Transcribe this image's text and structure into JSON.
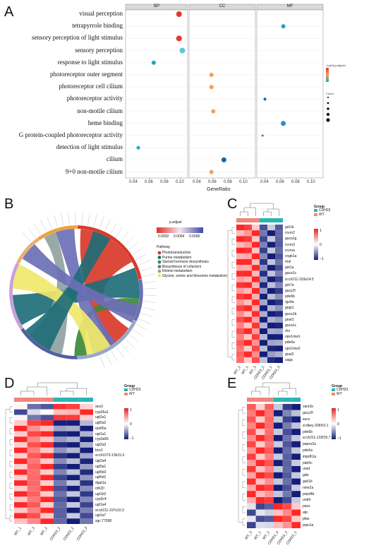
{
  "panels": {
    "A": {
      "letter": "A",
      "facets": [
        "BP",
        "CC",
        "MF"
      ],
      "xlabel": "GeneRatio",
      "terms": [
        "visual perception",
        "tetrapyrrole binding",
        "sensory perception of light stimulus",
        "sensory perception",
        "response to light stimulus",
        "photoreceptor outer segment",
        "photoreceptor cell cilium",
        "photoreceptor activity",
        "non-motile cilium",
        "heme binding",
        "G protein-coupled photoreceptor activity",
        "detection of light stimulus",
        "cilium",
        "9+0 non-motile cilium"
      ],
      "ticks": {
        "BP": [
          "0.04",
          "0.06",
          "0.08",
          "0.10"
        ],
        "CC": [
          "0.04",
          "0.06",
          "0.08",
          "0.10"
        ],
        "MF": [
          "0.04",
          "0.06",
          "0.08",
          "0.10"
        ]
      },
      "legend": {
        "color_title": "-log10(p.adjust)",
        "size_title": "Count"
      },
      "colors": {
        "high": "#e8372a",
        "mid": "#f5a05a",
        "low": "#1aa7c8",
        "deep": "#1565a6"
      }
    },
    "B": {
      "letter": "B",
      "legend_title": "p.adjust",
      "colorbar_ticks": [
        "0.0002",
        "0.0004",
        "0.0006"
      ],
      "pathway_title": "Pathway",
      "pathways": [
        {
          "label": "Phototransduction",
          "color": "#d93a2a"
        },
        {
          "label": "Purine metabolism",
          "color": "#1f6e78"
        },
        {
          "label": "Steroid hormone biosynthesis",
          "color": "#3c8a3c"
        },
        {
          "label": "Biosynthesis of cofactors",
          "color": "#6b6fb5"
        },
        {
          "label": "Retinol metabolism",
          "color": "#8fa2a0"
        },
        {
          "label": "Glycine, serine and threonine metabolism",
          "color": "#f0e86a"
        }
      ]
    },
    "C": {
      "letter": "C",
      "legend_title": "Group",
      "groups": [
        {
          "label": "CDH23",
          "color": "#2ab5b5"
        },
        {
          "label": "WT",
          "color": "#f0857a"
        }
      ],
      "scale": [
        "1",
        "0",
        "−1"
      ],
      "genes": [
        "grk1b",
        "rcvrn2",
        "guca1g",
        "rcvrn3",
        "rcvrna",
        "cngb1a",
        "rhol",
        "grk1a",
        "guca1c",
        "si:ch211-103a14.5",
        "grk7a",
        "gucy2f",
        "pde6b",
        "rgs9a",
        "gngt1",
        "guca1b",
        "gnat1",
        "guca1c",
        "rho",
        "opn1mw1",
        "pde6a",
        "opn1mw2",
        "gnat2",
        "saga"
      ],
      "samples": [
        "WT_2",
        "WT_1",
        "WT_3",
        "CDH23_2",
        "CDH23_1",
        "CDH23_3"
      ]
    },
    "D": {
      "letter": "D",
      "legend_title": "Group",
      "groups": [
        {
          "label": "CDH23",
          "color": "#2ab5b5"
        },
        {
          "label": "WT",
          "color": "#f0857a"
        }
      ],
      "scale": [
        "1",
        "0",
        "−1"
      ],
      "genes": [
        "aox3",
        "cyp26a1",
        "ugt2a1",
        "ugt5a2",
        "rpe65a",
        "ugt1a1",
        "cyp3a65",
        "ugt2a2",
        "bco1",
        "si:ch1073-13h15.3",
        "ugt2a4",
        "ugt5a1",
        "ugt5b3",
        "ugt5d1",
        "dgat1a",
        "rdh20",
        "ugt1b2",
        "cyp3c4",
        "ugt1a4",
        "si:ch211-107o10.3",
        "ugt1a7",
        "zgc:77938"
      ],
      "samples": [
        "WT_1",
        "WT_3",
        "WT_2",
        "CDH23_2",
        "CDH23_1",
        "CDH23_3"
      ]
    },
    "E": {
      "letter": "E",
      "legend_title": "Group",
      "groups": [
        {
          "label": "CDH23",
          "color": "#2ab5b5"
        },
        {
          "label": "WT",
          "color": "#f0857a"
        }
      ],
      "scale": [
        "1",
        "0",
        "−1"
      ],
      "genes": [
        "cant1b",
        "gucy2f",
        "sucx",
        "si:dkey-206f10.1",
        "pde6b",
        "si:ch211-132f19.7",
        "papss2a",
        "pde6a",
        "impdh1a",
        "pde6c",
        "urad",
        "gda",
        "guk1b",
        "nme2a",
        "prpsl4b",
        "uraht",
        "pacs",
        "atic",
        "pfas",
        "prps1a"
      ],
      "samples": [
        "WT_3",
        "WT_1",
        "WT_2",
        "CDH23_3",
        "CDH23_2",
        "CDH23_1"
      ]
    }
  }
}
